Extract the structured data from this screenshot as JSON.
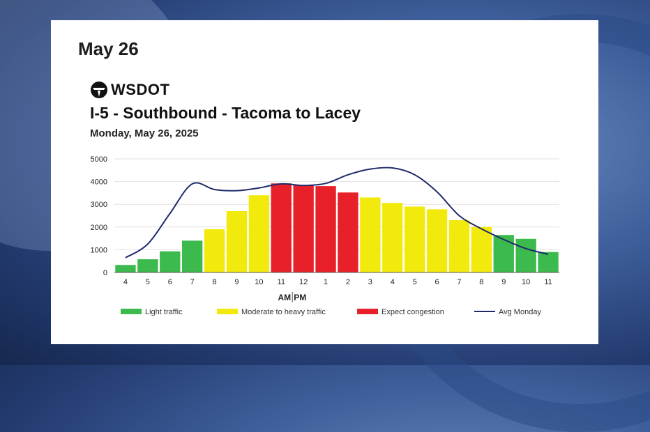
{
  "page": {
    "date_heading": "May 26",
    "logo_text": "WSDOT"
  },
  "colors": {
    "light": "#3dba4e",
    "moderate": "#f2ea0d",
    "congestion": "#e8202a",
    "avg_line": "#1f2a6b",
    "grid": "#e2e2e2"
  },
  "chart_data": {
    "type": "bar",
    "title": "I-5 - Southbound - Tacoma to Lacey",
    "subtitle": "Monday, May 26, 2025",
    "xlabel": "AM|PM",
    "ylabel": "",
    "ylim": [
      0,
      5000
    ],
    "yticks": [
      0,
      1000,
      2000,
      3000,
      4000,
      5000
    ],
    "grid": true,
    "legend_position": "bottom",
    "categories": [
      "4",
      "5",
      "6",
      "7",
      "8",
      "9",
      "10",
      "11",
      "12",
      "1",
      "2",
      "3",
      "4",
      "5",
      "6",
      "7",
      "8",
      "9",
      "10",
      "11"
    ],
    "series": [
      {
        "kind": "bar",
        "values": [
          330,
          580,
          930,
          1400,
          1900,
          2700,
          3400,
          3920,
          3850,
          3800,
          3520,
          3300,
          3060,
          2900,
          2780,
          2300,
          2000,
          1650,
          1480,
          900
        ],
        "levels": [
          "light",
          "light",
          "light",
          "light",
          "moderate",
          "moderate",
          "moderate",
          "congestion",
          "congestion",
          "congestion",
          "congestion",
          "moderate",
          "moderate",
          "moderate",
          "moderate",
          "moderate",
          "moderate",
          "light",
          "light",
          "light"
        ]
      },
      {
        "kind": "line",
        "name": "Avg Monday",
        "values": [
          650,
          1250,
          2600,
          3900,
          3650,
          3600,
          3720,
          3900,
          3830,
          3920,
          4300,
          4550,
          4600,
          4300,
          3550,
          2500,
          1920,
          1450,
          1050,
          800
        ]
      }
    ],
    "legend": [
      {
        "key": "light",
        "label": "Light traffic"
      },
      {
        "key": "moderate",
        "label": "Moderate to heavy traffic"
      },
      {
        "key": "congestion",
        "label": "Expect congestion"
      },
      {
        "key": "avg_line",
        "label": "Avg Monday"
      }
    ]
  }
}
